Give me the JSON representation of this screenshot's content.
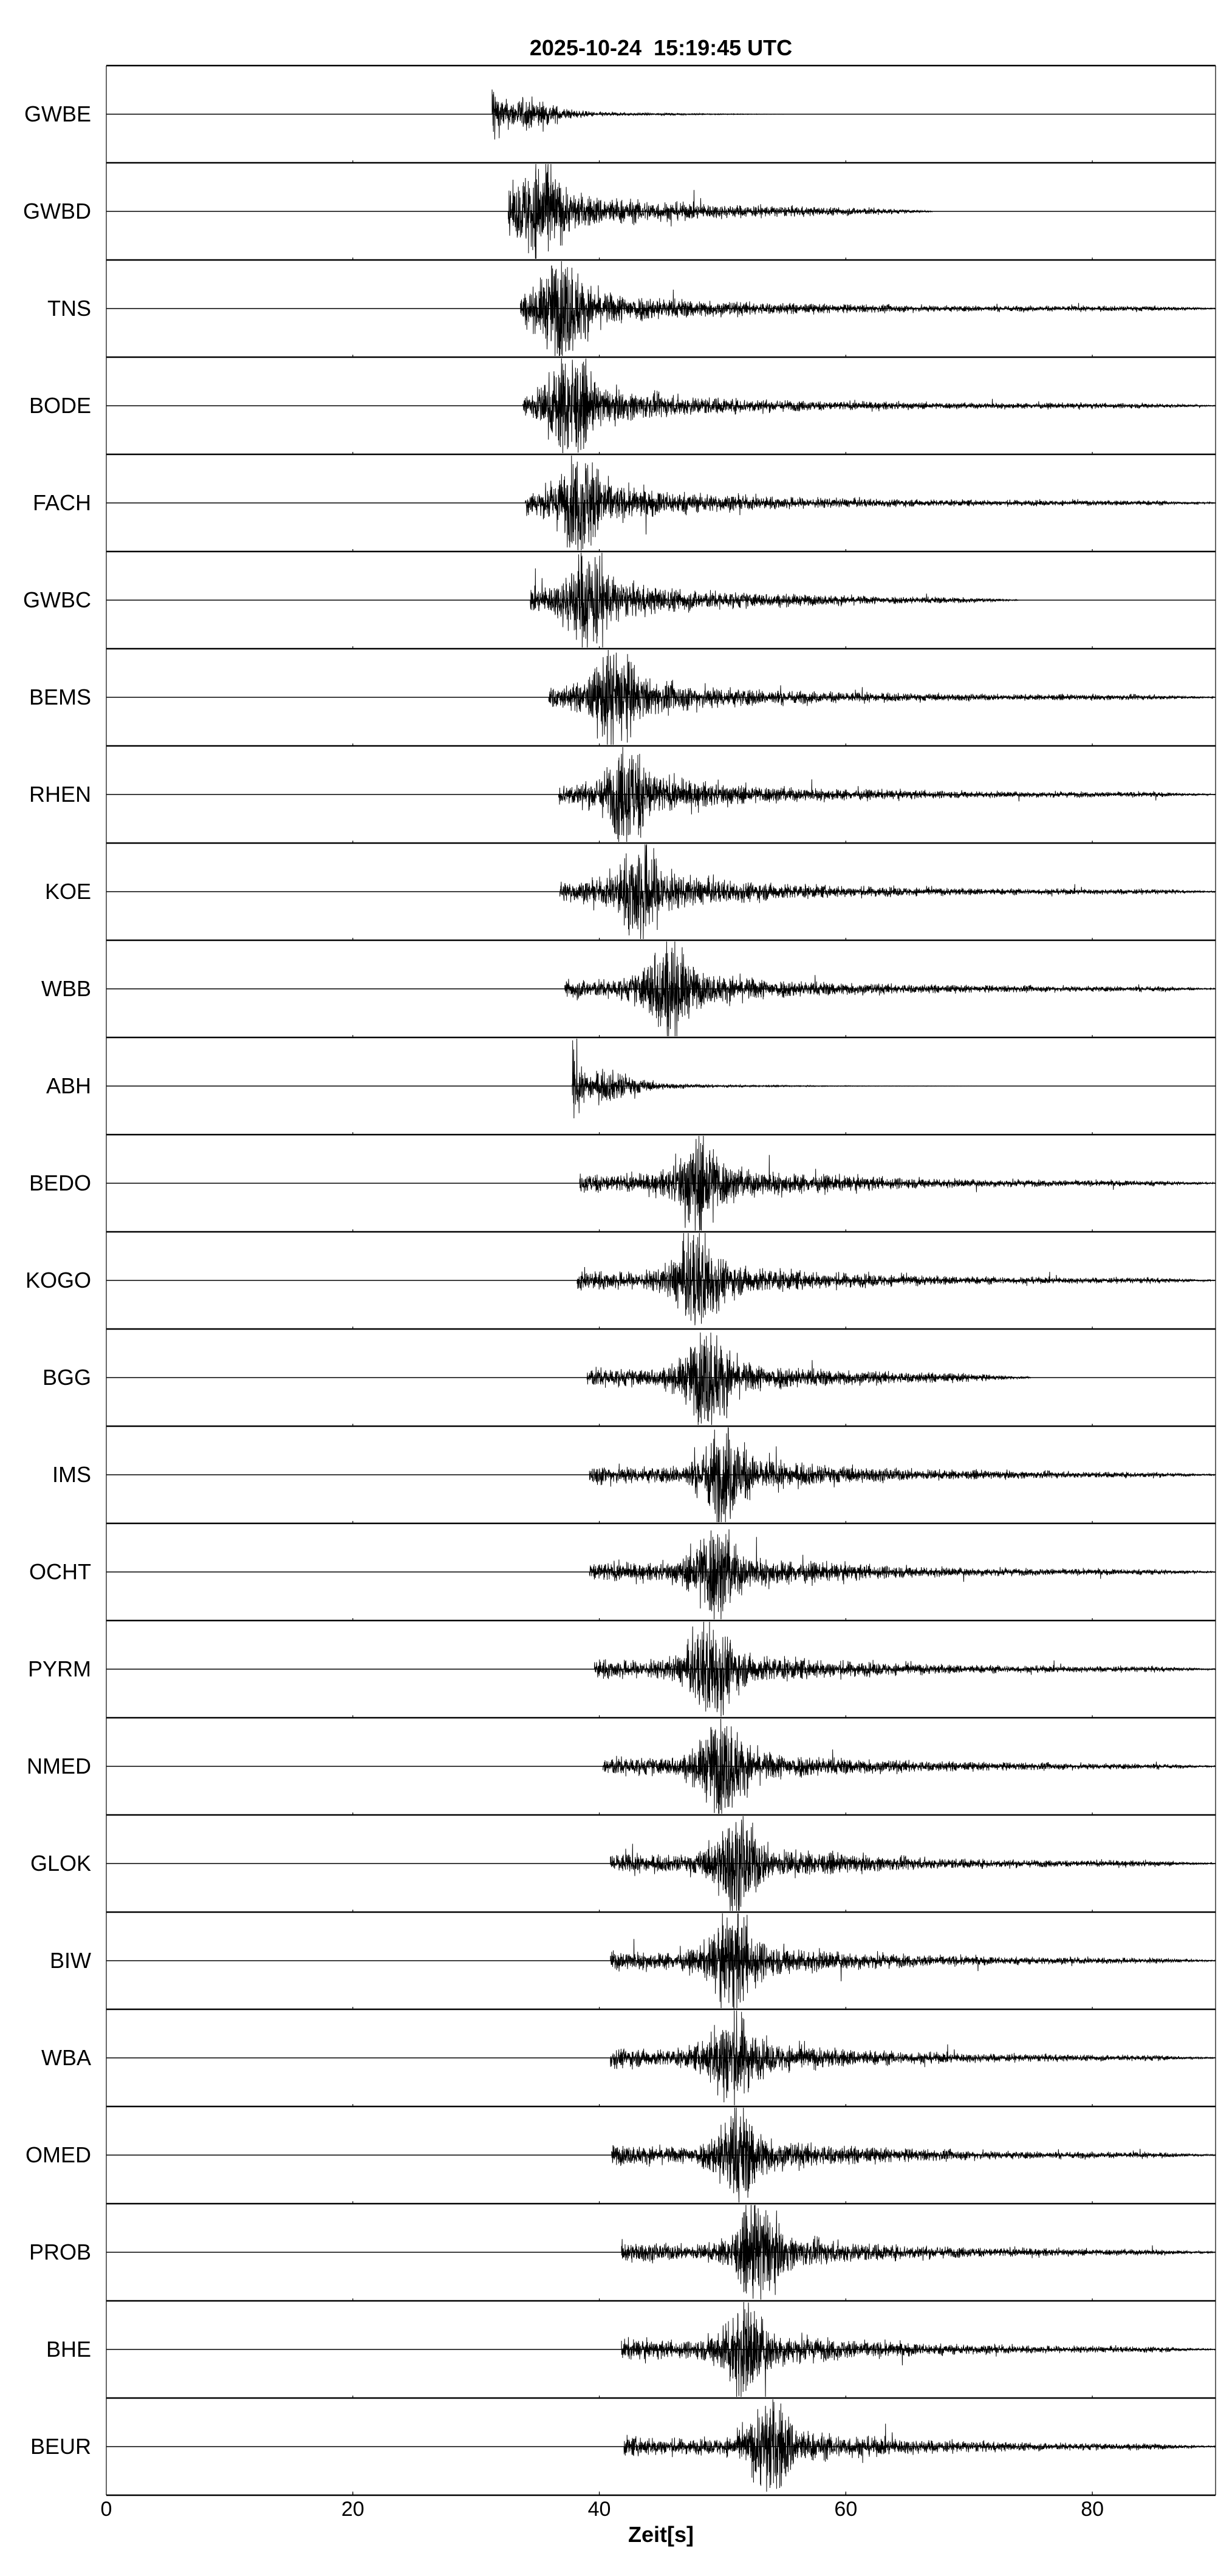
{
  "chart_data": {
    "type": "line",
    "title": "2025-10-24  15:19:45 UTC",
    "xlabel": "Zeit[s]",
    "ylabel": "",
    "xlim": [
      0,
      90
    ],
    "x_ticks": [
      0,
      20,
      40,
      60,
      80
    ],
    "grid": false,
    "color": "#000000",
    "series": [
      {
        "name": "GWBE",
        "onset_s": 31.3,
        "peak_s": 31.5,
        "coda_end_s": 55
      },
      {
        "name": "GWBD",
        "onset_s": 32.6,
        "peak_s": 35.2,
        "coda_end_s": 67
      },
      {
        "name": "TNS",
        "onset_s": 33.6,
        "peak_s": 37.0,
        "coda_end_s": 90
      },
      {
        "name": "BODE",
        "onset_s": 33.8,
        "peak_s": 37.6,
        "coda_end_s": 90
      },
      {
        "name": "FACH",
        "onset_s": 34.0,
        "peak_s": 38.6,
        "coda_end_s": 90
      },
      {
        "name": "GWBC",
        "onset_s": 34.4,
        "peak_s": 39.1,
        "coda_end_s": 74
      },
      {
        "name": "BEMS",
        "onset_s": 35.9,
        "peak_s": 41.3,
        "coda_end_s": 90
      },
      {
        "name": "RHEN",
        "onset_s": 36.7,
        "peak_s": 42.4,
        "coda_end_s": 90
      },
      {
        "name": "KOE",
        "onset_s": 36.8,
        "peak_s": 43.4,
        "coda_end_s": 90
      },
      {
        "name": "WBB",
        "onset_s": 37.2,
        "peak_s": 45.6,
        "coda_end_s": 90
      },
      {
        "name": "ABH",
        "onset_s": 37.8,
        "peak_s": 37.9,
        "coda_end_s": 72
      },
      {
        "name": "BEDO",
        "onset_s": 38.4,
        "peak_s": 48.2,
        "coda_end_s": 90
      },
      {
        "name": "KOGO",
        "onset_s": 38.2,
        "peak_s": 48.0,
        "coda_end_s": 90
      },
      {
        "name": "BGG",
        "onset_s": 39.0,
        "peak_s": 48.8,
        "coda_end_s": 75
      },
      {
        "name": "IMS",
        "onset_s": 39.2,
        "peak_s": 50.2,
        "coda_end_s": 90
      },
      {
        "name": "OCHT",
        "onset_s": 39.2,
        "peak_s": 49.4,
        "coda_end_s": 90
      },
      {
        "name": "PYRM",
        "onset_s": 39.6,
        "peak_s": 49.1,
        "coda_end_s": 90
      },
      {
        "name": "NMED",
        "onset_s": 40.3,
        "peak_s": 50.0,
        "coda_end_s": 90
      },
      {
        "name": "GLOK",
        "onset_s": 40.9,
        "peak_s": 51.2,
        "coda_end_s": 90
      },
      {
        "name": "BIW",
        "onset_s": 40.9,
        "peak_s": 50.9,
        "coda_end_s": 90
      },
      {
        "name": "WBA",
        "onset_s": 40.9,
        "peak_s": 50.7,
        "coda_end_s": 90
      },
      {
        "name": "OMED",
        "onset_s": 41.0,
        "peak_s": 51.3,
        "coda_end_s": 90
      },
      {
        "name": "PROB",
        "onset_s": 41.8,
        "peak_s": 52.9,
        "coda_end_s": 90
      },
      {
        "name": "BHE",
        "onset_s": 41.8,
        "peak_s": 51.8,
        "coda_end_s": 90
      },
      {
        "name": "BEUR",
        "onset_s": 42.0,
        "peak_s": 54.0,
        "coda_end_s": 90
      }
    ]
  }
}
